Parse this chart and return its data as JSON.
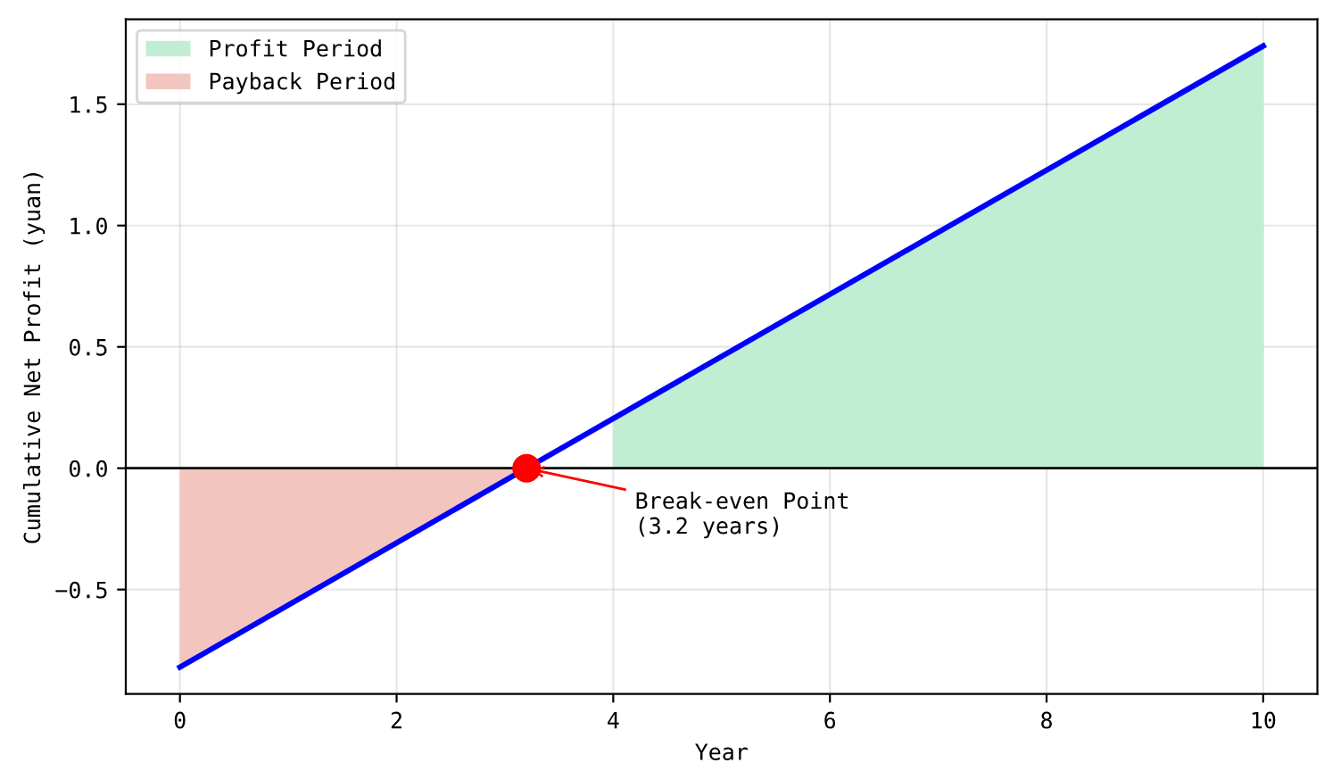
{
  "chart_data": {
    "type": "line",
    "xlabel": "Year",
    "ylabel": "Cumulative Net Profit (yuan)",
    "series": [
      {
        "name": "Profit Period",
        "type": "area",
        "color": "#c1eed3",
        "x": [
          4,
          10
        ],
        "values": [
          0.2,
          1.74
        ]
      },
      {
        "name": "Payback Period",
        "type": "area",
        "color": "#f3c5bf",
        "x": [
          0,
          3.2
        ],
        "values": [
          -0.82,
          0
        ]
      },
      {
        "color": "#0000ff",
        "x": [
          0,
          3.2,
          10
        ],
        "values": [
          -0.82,
          0,
          1.74
        ]
      },
      {
        "type": "scatter",
        "color": "#ff0000",
        "x": [
          3.2
        ],
        "values": [
          0
        ]
      }
    ],
    "ref_lines": [
      {
        "axis": "y",
        "value": 0,
        "color": "#000000"
      }
    ],
    "annotations": [
      {
        "text": "Break-even Point\n(3.2 years)",
        "x": 3.2,
        "y": 0
      }
    ],
    "xlim": [
      -0.5,
      10.5
    ],
    "ylim": [
      -0.93,
      1.85
    ],
    "xticks": [
      0,
      2,
      4,
      6,
      8,
      10
    ],
    "yticks": [
      {
        "value": -0.5,
        "label": "−0.5"
      },
      {
        "value": 0,
        "label": "0.0"
      },
      0.5,
      {
        "value": 1,
        "label": "1.0"
      },
      1.5
    ],
    "grid": true,
    "legend": "top left"
  }
}
